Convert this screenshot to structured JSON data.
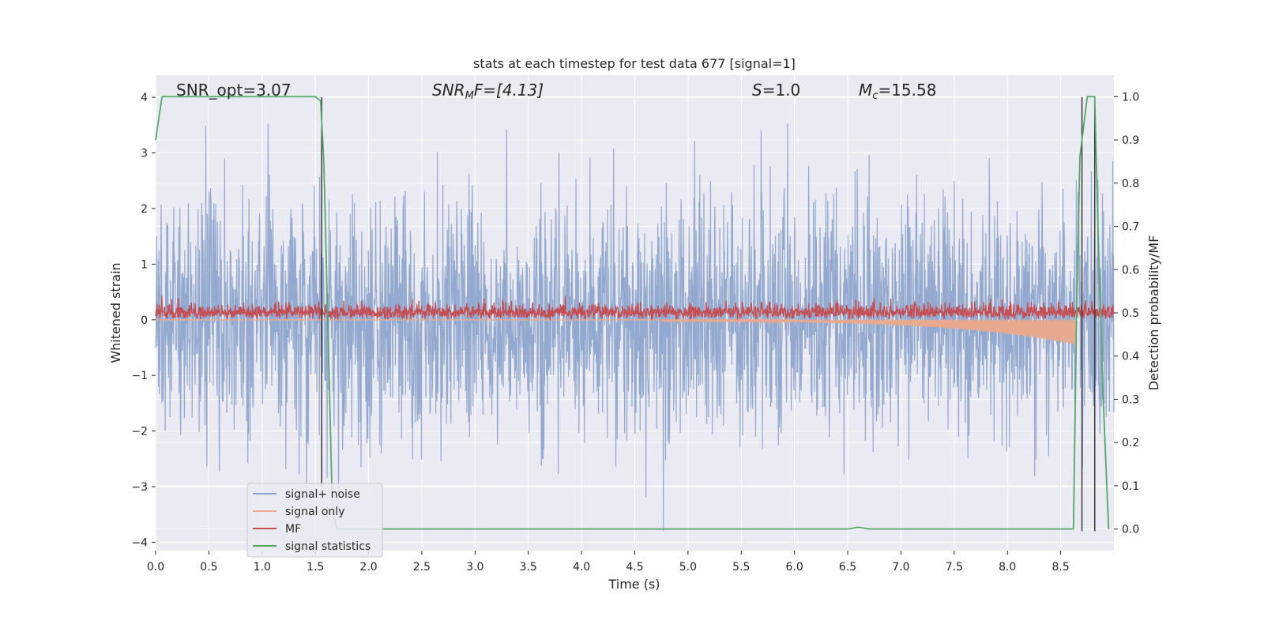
{
  "chart_data": {
    "type": "line",
    "title": "stats at each timestep for test data 677 [signal=1]",
    "xlabel": "Time (s)",
    "ylabel_left": "Whitened strain",
    "ylabel_right": "Detection probability/MF",
    "xlim": [
      0.0,
      9.0
    ],
    "ylim_left": [
      -4.15,
      4.4
    ],
    "ylim_right": [
      -0.05,
      1.05
    ],
    "x_ticks": [
      "0.0",
      "0.5",
      "1.0",
      "1.5",
      "2.0",
      "2.5",
      "3.0",
      "3.5",
      "4.0",
      "4.5",
      "5.0",
      "5.5",
      "6.0",
      "6.5",
      "7.0",
      "7.5",
      "8.0",
      "8.5"
    ],
    "y_left_ticks": [
      "4",
      "3",
      "2",
      "1",
      "0",
      "−1",
      "−2",
      "−3",
      "−4"
    ],
    "y_right_ticks": [
      "1.0",
      "0.9",
      "0.8",
      "0.7",
      "0.6",
      "0.5",
      "0.4",
      "0.3",
      "0.2",
      "0.1",
      "0.0"
    ],
    "grid": true,
    "annotations": {
      "snr_opt": "SNR_opt=3.07",
      "snr_mf_main": "SNR",
      "snr_mf_sub": "M",
      "snr_mf_rest": "F=[4.13]",
      "s_var": "S",
      "s_val": "=1.0",
      "mc_var": "M",
      "mc_sub": "c",
      "mc_val": "=15.58"
    },
    "legend": {
      "placement": "lower-left",
      "entries": [
        "signal+ noise",
        "signal only",
        "MF",
        "signal statistics"
      ]
    },
    "colors": {
      "signal_noise": "#8fa5cc",
      "signal_only": "#e8a98f",
      "mf": "#c44e52",
      "signal_statistics": "#55a868",
      "vline": "#3a3a3a",
      "background": "#eaeaf2",
      "grid": "#ffffff"
    },
    "signal_noise": {
      "amplitude_envelope_std": 1.1,
      "range": [
        -3.8,
        4.0
      ],
      "x_range": [
        0.0,
        9.0
      ]
    },
    "signal_only": {
      "x_range": [
        0.0,
        8.65
      ],
      "amplitude_start": 0.02,
      "amplitude_end": 0.45
    },
    "mf": {
      "x_range": [
        0.0,
        9.0
      ],
      "typical_range": [
        0.0,
        0.95
      ]
    },
    "signal_statistics": {
      "x": [
        0.0,
        0.06,
        1.5,
        1.55,
        1.58,
        1.62,
        1.66,
        1.7,
        6.5,
        6.6,
        6.7,
        8.62,
        8.65,
        8.68,
        8.75,
        8.82,
        8.85,
        8.9,
        8.95
      ],
      "y": [
        0.9,
        1.0,
        1.0,
        0.99,
        0.85,
        0.45,
        0.05,
        0.0,
        0.0,
        0.004,
        0.0,
        0.0,
        0.5,
        0.86,
        1.0,
        1.0,
        0.7,
        0.3,
        0.0
      ]
    },
    "vertical_lines": [
      {
        "x": 1.56,
        "y_top": 4.0,
        "y_bottom": -3.0
      },
      {
        "x": 8.7,
        "y_top": 4.0,
        "y_bottom": -3.8
      },
      {
        "x": 8.82,
        "y_top": 4.0,
        "y_bottom": -3.8
      }
    ]
  }
}
